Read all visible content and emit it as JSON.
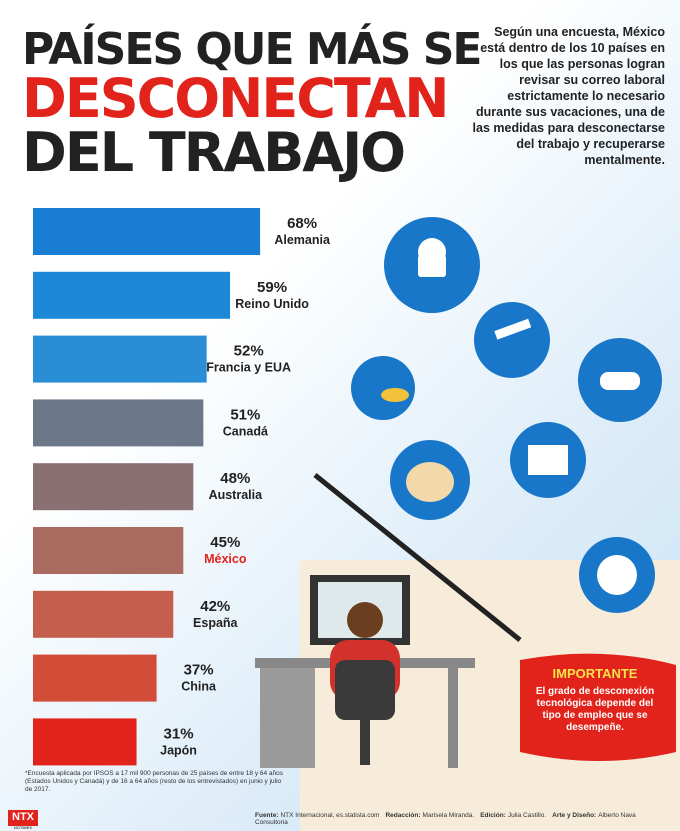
{
  "chart_data": {
    "type": "bar",
    "orientation": "horizontal",
    "title": [
      "PAÍSES QUE MÁS SE",
      "DESCONECTAN",
      "DEL TRABAJO"
    ],
    "intro": "Según una encuesta, México está dentro de los 10 países en los que las personas logran revisar su correo laboral estrictamente lo necesario durante sus vacaciones, una de las medidas para desconectarse del trabajo y recuperarse mentalmente.",
    "categories": [
      "Alemania",
      "Reino Unido",
      "Francia y EUA",
      "Canadá",
      "Australia",
      "México",
      "España",
      "China",
      "Japón"
    ],
    "values": [
      68,
      59,
      52,
      51,
      48,
      45,
      42,
      37,
      31
    ],
    "value_labels": [
      "68%",
      "59%",
      "52%",
      "51%",
      "48%",
      "45%",
      "42%",
      "37%",
      "31%"
    ],
    "colors": [
      "#1a7fd4",
      "#1d88d8",
      "#2a8ed6",
      "#6c7889",
      "#8a7072",
      "#a96a60",
      "#c35f4c",
      "#d24c38",
      "#e2231c"
    ],
    "label_colors": [
      "#222",
      "#222",
      "#222",
      "#222",
      "#222",
      "#e2231c",
      "#222",
      "#222",
      "#222"
    ],
    "important_title": "IMPORTANTE",
    "important_text": "El grado de desconexión tecnológica depende del tipo de empleo que se desempeñe.",
    "footnote": "*Encuesta aplicada por IPSOS a 17 mil 900 personas de 25 países de entre 18 y 64 años (Estados Unidos y Canadá) y de 16 a 64 años (resto de los entrevistados) en junio y julio de 2017.",
    "credits": [
      {
        "label": "Fuente:",
        "text": "NTX Internacional, es.statista.com"
      },
      {
        "label": "Redacción:",
        "text": "Marisela Miranda."
      },
      {
        "label": "Edición:",
        "text": "Julia Castillo."
      },
      {
        "label": "Arte y Diseño:",
        "text": "Alberto Nava Consultoria"
      }
    ],
    "logo": "NTX",
    "logo_sub": "NOTIMEX"
  }
}
